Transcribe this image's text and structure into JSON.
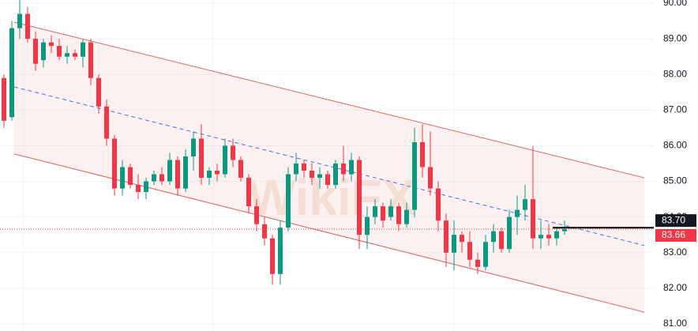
{
  "chart_data": {
    "type": "candlestick",
    "watermark": "WikiFX",
    "ylim": [
      80.8,
      90.09
    ],
    "yticks": [
      {
        "value": 81,
        "label": "81.00"
      },
      {
        "value": 82,
        "label": "82.00"
      },
      {
        "value": 83,
        "label": "83.00"
      },
      {
        "value": 84,
        "label": "84.00"
      },
      {
        "value": 85,
        "label": "85.00"
      },
      {
        "value": 86,
        "label": "86.00"
      },
      {
        "value": 87,
        "label": "87.00"
      },
      {
        "value": 88,
        "label": "88.00"
      },
      {
        "value": 89,
        "label": "89.00"
      },
      {
        "value": 90,
        "label": "90.00"
      }
    ],
    "grid": true,
    "up_color": "#089981",
    "down_color": "#f23645",
    "open": [
      87.9,
      86.8,
      89.3,
      89.7,
      89.0,
      88.4,
      88.9,
      88.8,
      88.5,
      88.6,
      88.5,
      88.9,
      87.9,
      87.1,
      86.2,
      84.8,
      85.4,
      84.9,
      84.7,
      85.0,
      85.2,
      85.0,
      85.6,
      84.8,
      85.7,
      86.2,
      85.1,
      85.3,
      85.2,
      86.0,
      85.6,
      85.1,
      84.3,
      83.8,
      83.4,
      82.4,
      83.7,
      85.2,
      85.5,
      85.3,
      85.1,
      85.2,
      84.9,
      85.5,
      85.2,
      85.6,
      83.5,
      84.0,
      84.3,
      84.0,
      84.3,
      83.8,
      84.2,
      86.1,
      85.4,
      84.8,
      83.9,
      83.0,
      83.5,
      83.3,
      82.8,
      82.6,
      83.3,
      83.6,
      83.1,
      84.0,
      84.2,
      84.5,
      83.4,
      83.5,
      83.4,
      83.6
    ],
    "high": [
      88.0,
      89.5,
      90.1,
      89.9,
      89.2,
      89.0,
      89.1,
      89.0,
      88.8,
      88.7,
      89.0,
      89.0,
      88.0,
      87.3,
      86.3,
      85.6,
      85.5,
      85.2,
      85.1,
      85.3,
      85.4,
      85.8,
      85.7,
      85.9,
      86.4,
      86.6,
      85.4,
      85.5,
      86.2,
      86.2,
      85.7,
      85.2,
      84.5,
      84.0,
      83.5,
      83.9,
      85.4,
      85.8,
      85.6,
      85.5,
      85.4,
      85.3,
      85.6,
      86.0,
      85.8,
      85.7,
      84.3,
      84.5,
      84.4,
      84.5,
      84.4,
      84.4,
      86.5,
      86.6,
      86.4,
      85.0,
      84.1,
      83.9,
      83.6,
      83.6,
      83.0,
      83.5,
      83.8,
      83.7,
      84.2,
      84.6,
      84.9,
      86.0,
      83.9,
      83.8,
      83.7,
      83.9
    ],
    "low": [
      86.5,
      86.7,
      89.0,
      88.9,
      88.1,
      88.2,
      88.6,
      88.4,
      88.3,
      88.4,
      88.2,
      87.7,
      86.9,
      86.0,
      84.6,
      84.6,
      84.8,
      84.5,
      84.5,
      84.9,
      84.9,
      84.9,
      84.6,
      84.7,
      85.3,
      84.9,
      84.9,
      85.0,
      85.1,
      85.4,
      85.0,
      84.1,
      83.6,
      83.2,
      82.1,
      82.1,
      83.6,
      85.0,
      85.1,
      84.9,
      84.8,
      84.8,
      84.8,
      85.0,
      85.0,
      83.1,
      83.1,
      83.8,
      83.7,
      83.9,
      83.6,
      83.7,
      84.0,
      85.1,
      84.6,
      83.6,
      82.6,
      82.5,
      83.0,
      82.6,
      82.4,
      82.5,
      83.0,
      83.0,
      83.0,
      83.5,
      83.9,
      83.1,
      83.1,
      83.2,
      83.2,
      83.5
    ],
    "close": [
      86.7,
      89.3,
      89.7,
      89.0,
      88.3,
      88.9,
      88.8,
      88.5,
      88.6,
      88.5,
      88.9,
      87.9,
      87.1,
      86.2,
      84.8,
      85.4,
      84.9,
      84.7,
      85.0,
      85.2,
      85.0,
      85.6,
      84.8,
      85.7,
      86.2,
      85.1,
      85.3,
      85.2,
      86.0,
      85.6,
      85.1,
      84.3,
      83.8,
      83.4,
      82.4,
      83.7,
      85.2,
      85.5,
      85.3,
      85.1,
      85.2,
      84.9,
      85.5,
      85.2,
      85.6,
      83.5,
      84.0,
      84.3,
      83.9,
      84.3,
      83.8,
      84.2,
      86.1,
      85.4,
      84.8,
      83.9,
      83.0,
      83.5,
      83.3,
      82.8,
      82.6,
      83.3,
      83.6,
      83.1,
      84.0,
      84.2,
      84.5,
      83.4,
      83.5,
      83.4,
      83.6,
      83.66
    ],
    "channel_x": [
      1.3,
      81.1
    ],
    "channel_color": "#e06666",
    "channel": {
      "upper": [
        89.47,
        85.1
      ],
      "middle": [
        87.65,
        83.2
      ],
      "lower": [
        85.77,
        81.33
      ]
    },
    "line_price": {
      "value": 83.7,
      "label": "83.70"
    },
    "last_price": {
      "value": 83.66,
      "label": "83.66"
    }
  }
}
